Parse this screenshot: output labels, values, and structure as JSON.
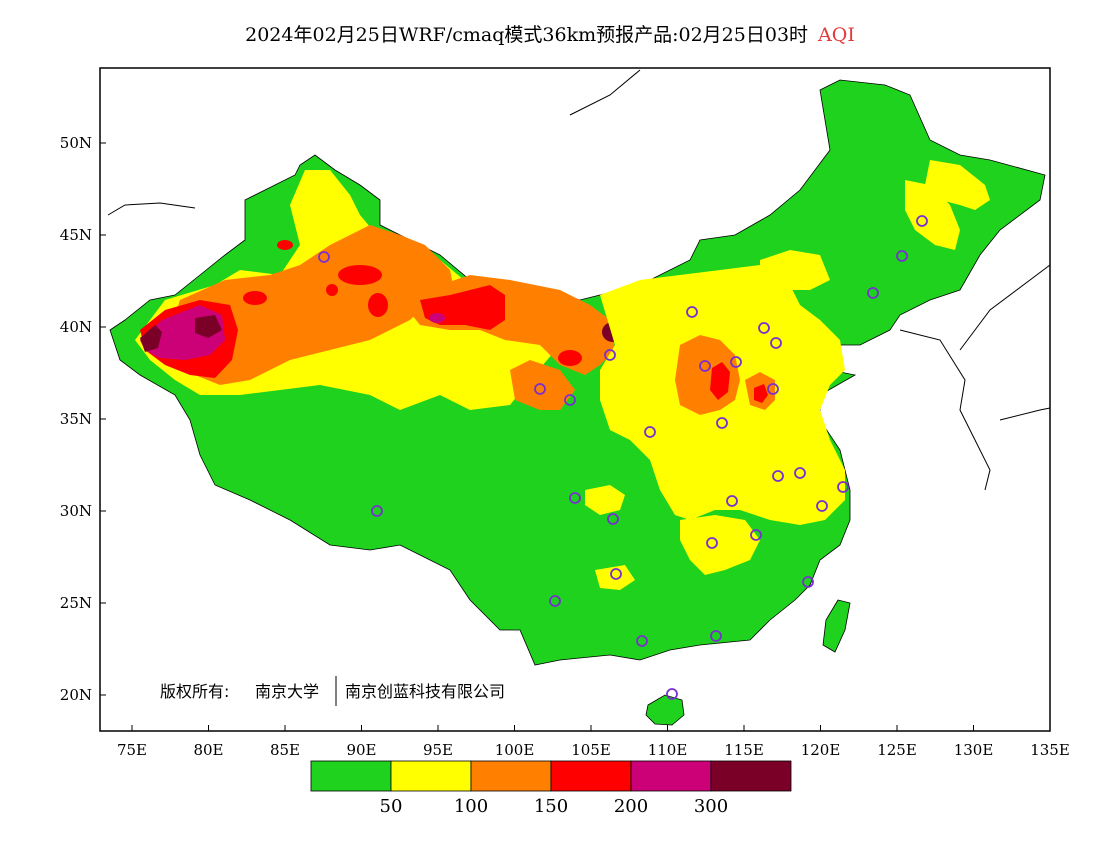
{
  "title": {
    "text": "2024年02月25日WRF/cmaq模式36km预报产品:02月25日03时",
    "variable": "AQI",
    "variable_color": "#e23b3b"
  },
  "axes": {
    "y_ticks": [
      "20N",
      "25N",
      "30N",
      "35N",
      "40N",
      "45N",
      "50N"
    ],
    "x_ticks": [
      "75E",
      "80E",
      "85E",
      "90E",
      "95E",
      "100E",
      "105E",
      "110E",
      "115E",
      "120E",
      "125E",
      "130E",
      "135E"
    ]
  },
  "copyright": {
    "label": "版权所有:",
    "org1": "南京大学",
    "org2": "南京创蓝科技有限公司"
  },
  "legend": {
    "colors": [
      "#1ed21e",
      "#ffff00",
      "#ff8000",
      "#ff0000",
      "#cc0077",
      "#7a0028"
    ],
    "labels": [
      "50",
      "100",
      "150",
      "200",
      "300"
    ]
  },
  "colors": {
    "good": "#1ed21e",
    "moderate": "#ffff00",
    "unhealthy_sensitive": "#ff8000",
    "unhealthy": "#ff0000",
    "very_unhealthy": "#cc0077",
    "hazardous": "#7a0028",
    "station_marker": "#7a2fd0"
  },
  "map_regions": [
    {
      "name": "green-base",
      "level": 0
    },
    {
      "name": "yellow-northwest",
      "level": 1
    },
    {
      "name": "orange-taklamakan",
      "level": 2
    },
    {
      "name": "red-kashgar",
      "level": 3
    },
    {
      "name": "purple-kashgar-core",
      "level": 4
    },
    {
      "name": "darkred-kashgar-core",
      "level": 5
    },
    {
      "name": "yellow-north-china-plain",
      "level": 1
    },
    {
      "name": "orange-shanxi",
      "level": 2
    },
    {
      "name": "red-shanxi",
      "level": 3
    },
    {
      "name": "red-hebei-shandong",
      "level": 3
    },
    {
      "name": "orange-alxa",
      "level": 2
    },
    {
      "name": "red-alxa",
      "level": 3
    },
    {
      "name": "darkred-wuhai",
      "level": 5
    },
    {
      "name": "yellow-northeast",
      "level": 1
    },
    {
      "name": "yellow-central",
      "level": 1
    }
  ]
}
